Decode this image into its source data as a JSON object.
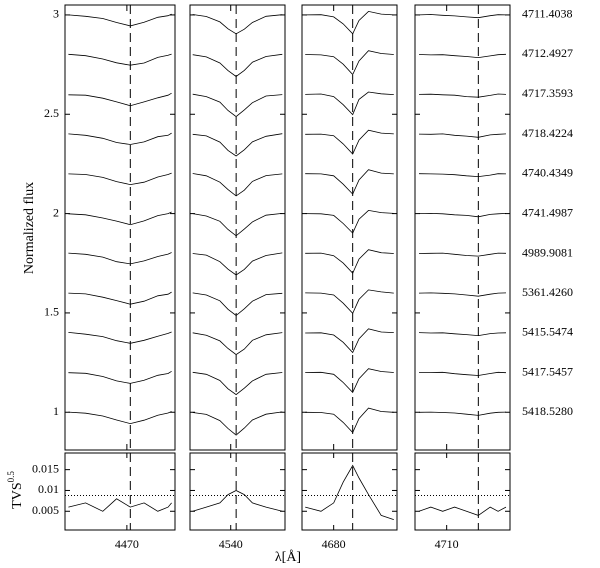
{
  "chart_data": {
    "type": "line",
    "ylabel": "Normalized flux",
    "tvs_label": "TVS",
    "tvs_label_exp": "0.5",
    "xlabel": "λ[Å]",
    "ylim": [
      0.81,
      3.05
    ],
    "yticks": [
      1,
      1.5,
      2,
      2.5,
      3
    ],
    "tvs_ylim": [
      0.0005,
      0.019
    ],
    "tvs_yticks": [
      0.005,
      0.01,
      0.015
    ],
    "tvs_threshold": 0.0088,
    "color": "#000000",
    "labels": [
      "4711.4038",
      "4712.4927",
      "4717.3593",
      "4718.4224",
      "4740.4349",
      "4741.4987",
      "4989.9081",
      "5361.4260",
      "5415.5474",
      "5417.5457",
      "5418.5280"
    ],
    "panels": [
      {
        "xlim": [
          4452,
          4484
        ],
        "xticks": [
          4470
        ],
        "line": 4471,
        "x": [
          4453,
          4458,
          4463,
          4467,
          4471,
          4475,
          4479,
          4482,
          4483
        ],
        "spectra": [
          [
            3.0,
            2.993,
            2.982,
            2.962,
            2.945,
            2.963,
            2.988,
            2.996,
            3.004
          ],
          [
            2.802,
            2.795,
            2.778,
            2.759,
            2.747,
            2.758,
            2.786,
            2.797,
            2.803
          ],
          [
            2.598,
            2.596,
            2.581,
            2.562,
            2.543,
            2.562,
            2.583,
            2.596,
            2.606
          ],
          [
            2.401,
            2.394,
            2.379,
            2.358,
            2.348,
            2.361,
            2.387,
            2.394,
            2.405
          ],
          [
            2.2,
            2.197,
            2.182,
            2.161,
            2.146,
            2.158,
            2.184,
            2.197,
            2.204
          ],
          [
            1.999,
            1.994,
            1.978,
            1.962,
            1.944,
            1.963,
            1.99,
            2.0,
            2.008
          ],
          [
            1.801,
            1.795,
            1.781,
            1.758,
            1.747,
            1.762,
            1.784,
            1.796,
            1.804
          ],
          [
            1.6,
            1.596,
            1.579,
            1.562,
            1.544,
            1.559,
            1.586,
            1.594,
            1.605
          ],
          [
            1.402,
            1.393,
            1.381,
            1.36,
            1.347,
            1.362,
            1.383,
            1.397,
            1.404
          ],
          [
            1.199,
            1.196,
            1.18,
            1.158,
            1.145,
            1.161,
            1.186,
            1.195,
            1.206
          ],
          [
            1.001,
            0.995,
            0.981,
            0.961,
            0.943,
            0.96,
            0.985,
            0.996,
            1.004
          ]
        ],
        "tvs": [
          0.006,
          0.007,
          0.005,
          0.008,
          0.006,
          0.007,
          0.005,
          0.006,
          0.007
        ]
      },
      {
        "xlim": [
          4525,
          4560
        ],
        "xticks": [
          4540
        ],
        "line": 4542,
        "x": [
          4526,
          4531,
          4536,
          4539,
          4542,
          4545,
          4548,
          4553,
          4559
        ],
        "spectra": [
          [
            3.002,
            2.992,
            2.965,
            2.93,
            2.905,
            2.928,
            2.962,
            2.993,
            3.001
          ],
          [
            2.8,
            2.789,
            2.758,
            2.72,
            2.69,
            2.721,
            2.762,
            2.791,
            2.802
          ],
          [
            2.601,
            2.589,
            2.561,
            2.519,
            2.488,
            2.522,
            2.558,
            2.592,
            2.599
          ],
          [
            2.399,
            2.391,
            2.36,
            2.318,
            2.29,
            2.321,
            2.361,
            2.389,
            2.402
          ],
          [
            2.202,
            2.19,
            2.158,
            2.121,
            2.089,
            2.118,
            2.162,
            2.191,
            2.2
          ],
          [
            2.0,
            1.988,
            1.961,
            1.92,
            1.888,
            1.922,
            1.958,
            1.992,
            2.001
          ],
          [
            1.799,
            1.791,
            1.758,
            1.72,
            1.691,
            1.719,
            1.761,
            1.789,
            1.802
          ],
          [
            1.601,
            1.59,
            1.561,
            1.518,
            1.487,
            1.521,
            1.559,
            1.592,
            1.599
          ],
          [
            1.4,
            1.388,
            1.359,
            1.321,
            1.29,
            1.318,
            1.362,
            1.39,
            1.401
          ],
          [
            1.201,
            1.191,
            1.16,
            1.118,
            1.089,
            1.121,
            1.158,
            1.191,
            1.2
          ],
          [
            0.999,
            0.989,
            0.958,
            0.918,
            0.885,
            0.92,
            0.961,
            0.99,
            1.002
          ]
        ],
        "tvs": [
          0.005,
          0.006,
          0.007,
          0.009,
          0.01,
          0.009,
          0.007,
          0.006,
          0.005
        ]
      },
      {
        "xlim": [
          4670,
          4700
        ],
        "xticks": [
          4680
        ],
        "line": 4686,
        "x": [
          4671,
          4676,
          4680,
          4683,
          4686,
          4688,
          4691,
          4695,
          4699
        ],
        "spectra": [
          [
            3.0,
            3.001,
            2.99,
            2.955,
            2.905,
            2.972,
            3.018,
            3.004,
            3.0
          ],
          [
            2.801,
            2.799,
            2.79,
            2.752,
            2.7,
            2.768,
            2.82,
            2.806,
            2.801
          ],
          [
            2.6,
            2.602,
            2.589,
            2.548,
            2.498,
            2.575,
            2.612,
            2.603,
            2.599
          ],
          [
            2.399,
            2.4,
            2.392,
            2.351,
            2.3,
            2.37,
            2.42,
            2.405,
            2.401
          ],
          [
            2.201,
            2.2,
            2.19,
            2.148,
            2.098,
            2.169,
            2.221,
            2.204,
            2.2
          ],
          [
            2.0,
            1.999,
            1.991,
            1.95,
            1.902,
            1.972,
            2.016,
            2.005,
            2.001
          ],
          [
            1.8,
            1.801,
            1.788,
            1.751,
            1.7,
            1.771,
            1.818,
            1.803,
            1.799
          ],
          [
            1.601,
            1.6,
            1.59,
            1.549,
            1.498,
            1.568,
            1.616,
            1.606,
            1.6
          ],
          [
            1.399,
            1.4,
            1.389,
            1.352,
            1.301,
            1.37,
            1.42,
            1.404,
            1.401
          ],
          [
            1.2,
            1.201,
            1.191,
            1.15,
            1.1,
            1.169,
            1.219,
            1.205,
            1.2
          ],
          [
            1.0,
            0.999,
            0.99,
            0.949,
            0.898,
            0.968,
            1.021,
            1.004,
            1.0
          ]
        ],
        "tvs": [
          0.006,
          0.005,
          0.007,
          0.012,
          0.016,
          0.013,
          0.009,
          0.004,
          0.003
        ]
      },
      {
        "xlim": [
          4702,
          4726
        ],
        "xticks": [
          4710
        ],
        "line": 4718,
        "x": [
          4703,
          4706,
          4709,
          4712,
          4715,
          4718,
          4721,
          4723,
          4725
        ],
        "spectra": [
          [
            3.0,
            3.002,
            2.998,
            2.995,
            2.99,
            2.986,
            2.996,
            3.001,
            3.0
          ],
          [
            2.801,
            2.799,
            2.8,
            2.795,
            2.791,
            2.785,
            2.794,
            2.8,
            2.802
          ],
          [
            2.6,
            2.601,
            2.598,
            2.596,
            2.589,
            2.586,
            2.595,
            2.602,
            2.6
          ],
          [
            2.4,
            2.399,
            2.401,
            2.394,
            2.39,
            2.384,
            2.396,
            2.399,
            2.401
          ],
          [
            2.201,
            2.2,
            2.199,
            2.196,
            2.19,
            2.186,
            2.194,
            2.201,
            2.2
          ],
          [
            2.0,
            2.001,
            1.999,
            1.994,
            1.991,
            1.984,
            1.996,
            1.999,
            2.001
          ],
          [
            1.799,
            1.8,
            1.801,
            1.795,
            1.789,
            1.786,
            1.795,
            1.801,
            1.8
          ],
          [
            1.6,
            1.601,
            1.599,
            1.596,
            1.59,
            1.584,
            1.594,
            1.6,
            1.601
          ],
          [
            1.401,
            1.399,
            1.4,
            1.395,
            1.391,
            1.386,
            1.396,
            1.399,
            1.4
          ],
          [
            1.2,
            1.2,
            1.201,
            1.194,
            1.189,
            1.185,
            1.195,
            1.201,
            1.199
          ],
          [
            1.0,
            1.001,
            0.999,
            0.996,
            0.99,
            0.984,
            0.995,
            1.0,
            1.001
          ]
        ],
        "tvs": [
          0.005,
          0.006,
          0.005,
          0.006,
          0.005,
          0.004,
          0.006,
          0.005,
          0.006
        ]
      }
    ]
  }
}
